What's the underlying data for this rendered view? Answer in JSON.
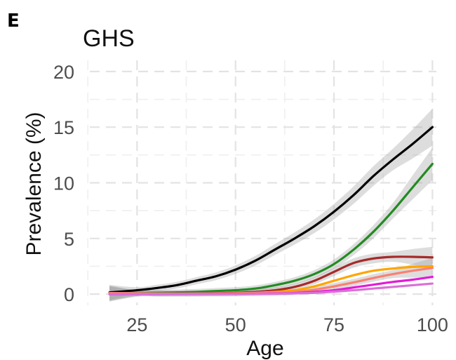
{
  "panel_label": "E",
  "chart_data": {
    "type": "line",
    "title": "GHS",
    "xlabel": "Age",
    "ylabel": "Prevalence (%)",
    "xlim": [
      13,
      101
    ],
    "ylim": [
      -1,
      21
    ],
    "xticks": [
      25,
      50,
      75,
      100
    ],
    "yticks": [
      0,
      5,
      10,
      15,
      20
    ],
    "grid": true,
    "legend": "none",
    "series": [
      {
        "color": "#000000",
        "ci": true,
        "x": [
          18,
          25,
          30,
          35,
          40,
          45,
          50,
          55,
          60,
          65,
          70,
          75,
          80,
          85,
          90,
          95,
          100
        ],
        "y": [
          0.15,
          0.35,
          0.55,
          0.8,
          1.2,
          1.6,
          2.2,
          3.0,
          4.0,
          5.0,
          6.1,
          7.4,
          8.9,
          10.6,
          12.1,
          13.5,
          15.0
        ]
      },
      {
        "color": "#228b22",
        "ci": true,
        "x": [
          18,
          25,
          30,
          35,
          40,
          45,
          50,
          55,
          60,
          65,
          70,
          75,
          80,
          85,
          90,
          95,
          100
        ],
        "y": [
          0.05,
          0.1,
          0.12,
          0.15,
          0.2,
          0.28,
          0.35,
          0.5,
          0.8,
          1.2,
          1.8,
          2.7,
          4.0,
          5.6,
          7.5,
          9.6,
          11.7
        ]
      },
      {
        "color": "#a52a2a",
        "ci": true,
        "x": [
          18,
          25,
          30,
          35,
          40,
          45,
          50,
          55,
          60,
          65,
          70,
          75,
          80,
          85,
          90,
          95,
          100
        ],
        "y": [
          0.0,
          0.02,
          0.04,
          0.05,
          0.06,
          0.08,
          0.12,
          0.2,
          0.35,
          0.65,
          1.2,
          2.0,
          2.8,
          3.2,
          3.35,
          3.35,
          3.3
        ]
      },
      {
        "color": "#ffa500",
        "ci": false,
        "x": [
          18,
          25,
          30,
          35,
          40,
          45,
          50,
          55,
          60,
          65,
          70,
          75,
          80,
          85,
          90,
          95,
          100
        ],
        "y": [
          0.0,
          0.01,
          0.02,
          0.03,
          0.04,
          0.06,
          0.08,
          0.12,
          0.2,
          0.35,
          0.7,
          1.2,
          1.7,
          2.1,
          2.3,
          2.45,
          2.5
        ]
      },
      {
        "color": "#fa8072",
        "ci": true,
        "x": [
          18,
          25,
          30,
          35,
          40,
          45,
          50,
          55,
          60,
          65,
          70,
          75,
          80,
          85,
          90,
          95,
          100
        ],
        "y": [
          0.1,
          0.08,
          0.06,
          0.05,
          0.05,
          0.05,
          0.06,
          0.08,
          0.12,
          0.2,
          0.4,
          0.7,
          1.05,
          1.45,
          1.8,
          2.1,
          2.35
        ]
      },
      {
        "color": "#e41ad8",
        "ci": false,
        "x": [
          18,
          25,
          30,
          35,
          40,
          45,
          50,
          55,
          60,
          65,
          70,
          75,
          80,
          85,
          90,
          95,
          100
        ],
        "y": [
          0.0,
          0.0,
          0.0,
          0.01,
          0.01,
          0.02,
          0.03,
          0.04,
          0.06,
          0.1,
          0.2,
          0.35,
          0.6,
          0.85,
          1.1,
          1.3,
          1.55
        ]
      },
      {
        "color": "#da70d6",
        "ci": false,
        "x": [
          18,
          25,
          30,
          35,
          40,
          45,
          50,
          55,
          60,
          65,
          70,
          75,
          80,
          85,
          90,
          95,
          100
        ],
        "y": [
          0.0,
          0.0,
          0.0,
          0.0,
          0.01,
          0.01,
          0.02,
          0.03,
          0.04,
          0.07,
          0.12,
          0.22,
          0.35,
          0.5,
          0.65,
          0.8,
          0.95
        ]
      }
    ]
  }
}
